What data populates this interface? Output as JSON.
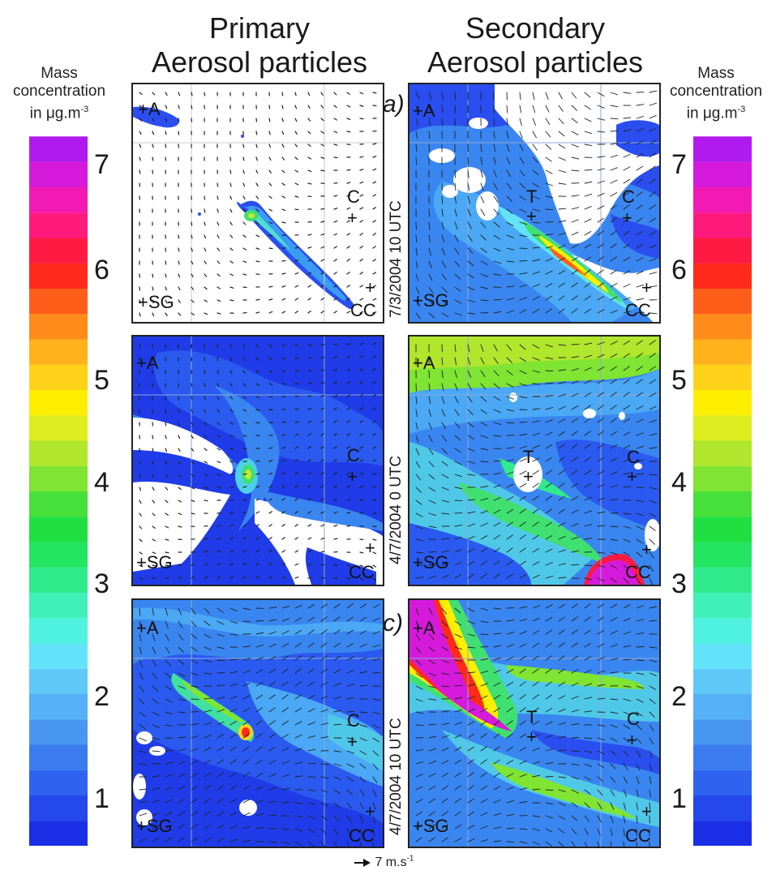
{
  "chart_data": {
    "type": "heatmap",
    "column_titles": {
      "primary": [
        "Primary",
        "Aerosol particles"
      ],
      "secondary": [
        "Secondary",
        "Aerosol particles"
      ]
    },
    "colorbar": {
      "title": [
        "Mass",
        "concentration",
        "in μg.m-3"
      ],
      "ticks": [
        "1",
        "2",
        "3",
        "4",
        "5",
        "6",
        "7"
      ],
      "range": [
        0.5,
        7.5
      ],
      "levels": 28,
      "colors": [
        "#1a2ee6",
        "#2448ec",
        "#2f62ee",
        "#3a7cf0",
        "#4896f2",
        "#55b0f5",
        "#5ec9f8",
        "#62e3fa",
        "#4ff2e0",
        "#3ff0b8",
        "#2feb8c",
        "#24e562",
        "#1fe040",
        "#47e03a",
        "#7fe432",
        "#b0e62c",
        "#dded1f",
        "#ffee00",
        "#ffd21a",
        "#ffb21a",
        "#ff8c1a",
        "#ff5e1a",
        "#ff2a1a",
        "#ff1a44",
        "#ff1a7c",
        "#f21ab4",
        "#d61adc",
        "#b01aee"
      ]
    },
    "panels": [
      {
        "row": 1,
        "column": "primary",
        "markers": [
          "+A",
          "C",
          "+",
          "+",
          "+SG",
          "CC"
        ]
      },
      {
        "row": 1,
        "column": "secondary",
        "label": "a)",
        "time": "7/3/2004 10 UTC",
        "markers": [
          "+A",
          "T",
          "+",
          "C",
          "+",
          "+",
          "+SG",
          "CC"
        ]
      },
      {
        "row": 2,
        "column": "primary",
        "markers": [
          "+A",
          "C",
          "+",
          "+",
          "+SG",
          "CC"
        ]
      },
      {
        "row": 2,
        "column": "secondary",
        "time": "4/7/2004 0 UTC",
        "markers": [
          "+A",
          "T",
          "+",
          "C",
          "+",
          "+",
          "+SG",
          "CC"
        ]
      },
      {
        "row": 3,
        "column": "primary",
        "markers": [
          "+A",
          "C",
          "+",
          "+",
          "+SG",
          "CC"
        ]
      },
      {
        "row": 3,
        "column": "secondary",
        "label": "c)",
        "time": "4/7/2004 10 UTC",
        "markers": [
          "+A",
          "T",
          "+",
          "C",
          "+",
          "+",
          "+SG",
          "CC"
        ]
      }
    ],
    "wind_reference": "7 m.s-1"
  }
}
